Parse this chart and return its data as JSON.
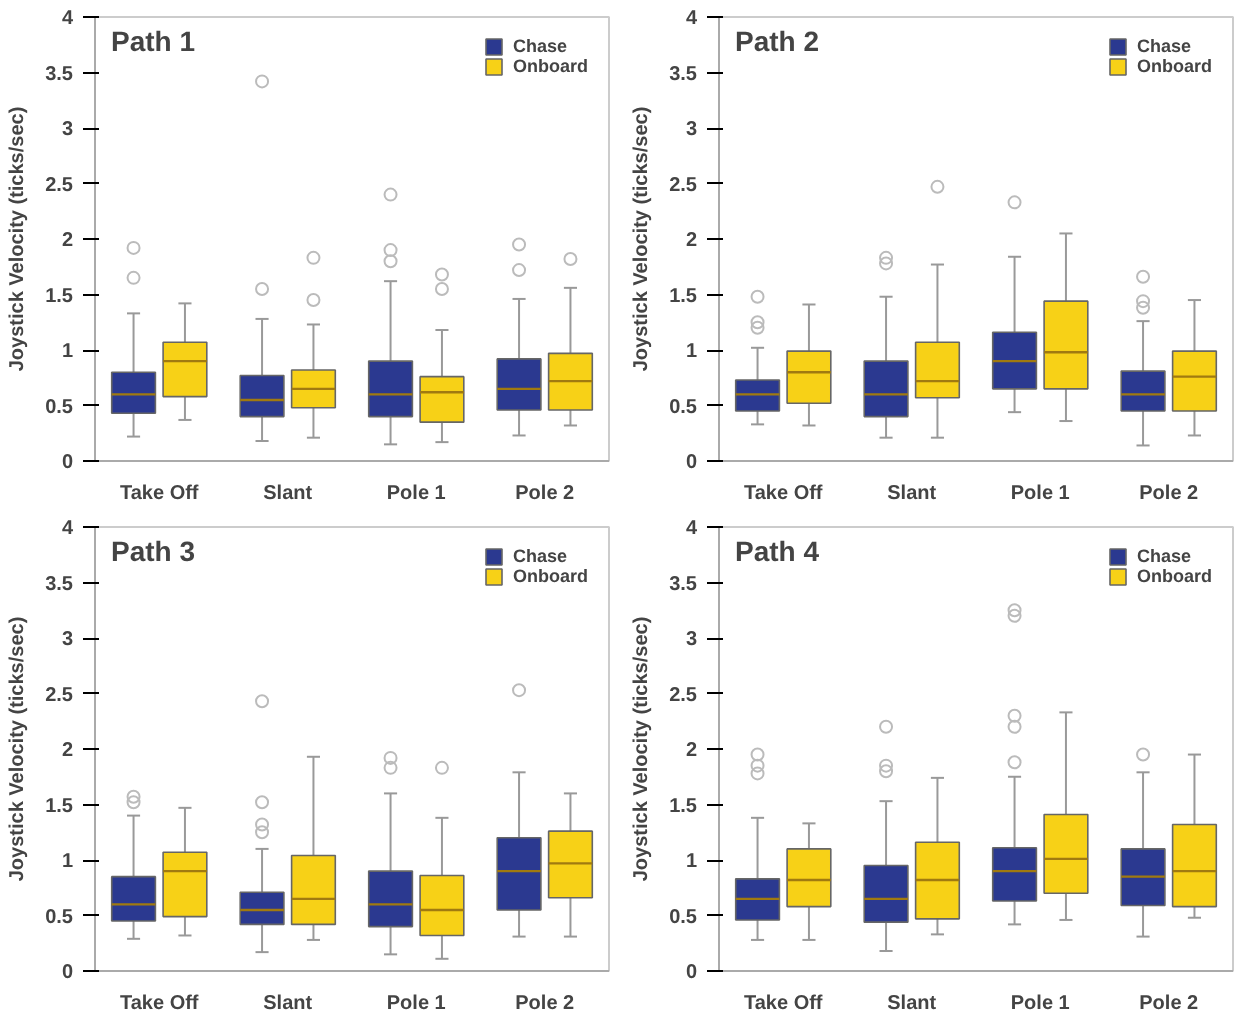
{
  "chart_data": [
    {
      "type": "box",
      "title": "Path 1",
      "ylabel": "Joystick Velocity (ticks/sec)",
      "categories": [
        "Take Off",
        "Slant",
        "Pole 1",
        "Pole 2"
      ],
      "ylim": [
        0,
        4
      ],
      "yticks": [
        0,
        0.5,
        1,
        1.5,
        2,
        2.5,
        3,
        3.5,
        4
      ],
      "legend": "top right",
      "grid": false,
      "series": [
        {
          "name": "Chase",
          "color": "#2b3990",
          "boxes": [
            {
              "low": 0.22,
              "q1": 0.43,
              "median": 0.6,
              "q3": 0.8,
              "high": 1.33,
              "outliers": [
                1.65,
                1.92
              ]
            },
            {
              "low": 0.18,
              "q1": 0.4,
              "median": 0.55,
              "q3": 0.77,
              "high": 1.28,
              "outliers": [
                1.55,
                3.42
              ]
            },
            {
              "low": 0.15,
              "q1": 0.4,
              "median": 0.6,
              "q3": 0.9,
              "high": 1.62,
              "outliers": [
                1.8,
                1.9,
                2.4
              ]
            },
            {
              "low": 0.23,
              "q1": 0.46,
              "median": 0.65,
              "q3": 0.92,
              "high": 1.46,
              "outliers": [
                1.72,
                1.95
              ]
            }
          ]
        },
        {
          "name": "Onboard",
          "color": "#f7d117",
          "boxes": [
            {
              "low": 0.37,
              "q1": 0.58,
              "median": 0.9,
              "q3": 1.07,
              "high": 1.42
            },
            {
              "low": 0.21,
              "q1": 0.48,
              "median": 0.65,
              "q3": 0.82,
              "high": 1.23,
              "outliers": [
                1.45,
                1.83
              ]
            },
            {
              "low": 0.17,
              "q1": 0.35,
              "median": 0.62,
              "q3": 0.76,
              "high": 1.18,
              "outliers": [
                1.55,
                1.68
              ]
            },
            {
              "low": 0.32,
              "q1": 0.46,
              "median": 0.72,
              "q3": 0.97,
              "high": 1.56,
              "outliers": [
                1.82
              ]
            }
          ]
        }
      ]
    },
    {
      "type": "box",
      "title": "Path 2",
      "ylabel": "Joystick Velocity (ticks/sec)",
      "categories": [
        "Take Off",
        "Slant",
        "Pole 1",
        "Pole 2"
      ],
      "ylim": [
        0,
        4
      ],
      "yticks": [
        0,
        0.5,
        1,
        1.5,
        2,
        2.5,
        3,
        3.5,
        4
      ],
      "legend": "top right",
      "grid": false,
      "series": [
        {
          "name": "Chase",
          "color": "#2b3990",
          "boxes": [
            {
              "low": 0.33,
              "q1": 0.45,
              "median": 0.6,
              "q3": 0.73,
              "high": 1.02,
              "outliers": [
                1.2,
                1.25,
                1.48
              ]
            },
            {
              "low": 0.21,
              "q1": 0.4,
              "median": 0.6,
              "q3": 0.9,
              "high": 1.48,
              "outliers": [
                1.78,
                1.83
              ]
            },
            {
              "low": 0.44,
              "q1": 0.65,
              "median": 0.9,
              "q3": 1.16,
              "high": 1.84,
              "outliers": [
                2.33
              ]
            },
            {
              "low": 0.14,
              "q1": 0.45,
              "median": 0.6,
              "q3": 0.81,
              "high": 1.26,
              "outliers": [
                1.38,
                1.44,
                1.66
              ]
            }
          ]
        },
        {
          "name": "Onboard",
          "color": "#f7d117",
          "boxes": [
            {
              "low": 0.32,
              "q1": 0.52,
              "median": 0.8,
              "q3": 0.99,
              "high": 1.41
            },
            {
              "low": 0.21,
              "q1": 0.57,
              "median": 0.72,
              "q3": 1.07,
              "high": 1.77,
              "outliers": [
                2.47
              ]
            },
            {
              "low": 0.36,
              "q1": 0.65,
              "median": 0.98,
              "q3": 1.44,
              "high": 2.05
            },
            {
              "low": 0.23,
              "q1": 0.45,
              "median": 0.76,
              "q3": 0.99,
              "high": 1.45
            }
          ]
        }
      ]
    },
    {
      "type": "box",
      "title": "Path 3",
      "ylabel": "Joystick Velocity (ticks/sec)",
      "categories": [
        "Take Off",
        "Slant",
        "Pole 1",
        "Pole 2"
      ],
      "ylim": [
        0,
        4
      ],
      "yticks": [
        0,
        0.5,
        1,
        1.5,
        2,
        2.5,
        3,
        3.5,
        4
      ],
      "legend": "top right",
      "grid": false,
      "series": [
        {
          "name": "Chase",
          "color": "#2b3990",
          "boxes": [
            {
              "low": 0.29,
              "q1": 0.45,
              "median": 0.6,
              "q3": 0.85,
              "high": 1.4,
              "outliers": [
                1.52,
                1.57
              ]
            },
            {
              "low": 0.17,
              "q1": 0.42,
              "median": 0.55,
              "q3": 0.71,
              "high": 1.1,
              "outliers": [
                1.25,
                1.32,
                1.52,
                2.43
              ]
            },
            {
              "low": 0.15,
              "q1": 0.4,
              "median": 0.6,
              "q3": 0.9,
              "high": 1.6,
              "outliers": [
                1.83,
                1.92
              ]
            },
            {
              "low": 0.31,
              "q1": 0.55,
              "median": 0.9,
              "q3": 1.2,
              "high": 1.79,
              "outliers": [
                2.53
              ]
            }
          ]
        },
        {
          "name": "Onboard",
          "color": "#f7d117",
          "boxes": [
            {
              "low": 0.32,
              "q1": 0.49,
              "median": 0.9,
              "q3": 1.07,
              "high": 1.47
            },
            {
              "low": 0.28,
              "q1": 0.42,
              "median": 0.65,
              "q3": 1.04,
              "high": 1.93
            },
            {
              "low": 0.11,
              "q1": 0.32,
              "median": 0.55,
              "q3": 0.86,
              "high": 1.38,
              "outliers": [
                1.83
              ]
            },
            {
              "low": 0.31,
              "q1": 0.66,
              "median": 0.97,
              "q3": 1.26,
              "high": 1.6
            }
          ]
        }
      ]
    },
    {
      "type": "box",
      "title": "Path 4",
      "ylabel": "Joystick Velocity (ticks/sec)",
      "categories": [
        "Take Off",
        "Slant",
        "Pole 1",
        "Pole 2"
      ],
      "ylim": [
        0,
        4
      ],
      "yticks": [
        0,
        0.5,
        1,
        1.5,
        2,
        2.5,
        3,
        3.5,
        4
      ],
      "legend": "top right",
      "grid": false,
      "series": [
        {
          "name": "Chase",
          "color": "#2b3990",
          "boxes": [
            {
              "low": 0.28,
              "q1": 0.46,
              "median": 0.65,
              "q3": 0.83,
              "high": 1.38,
              "outliers": [
                1.78,
                1.85,
                1.95
              ]
            },
            {
              "low": 0.18,
              "q1": 0.44,
              "median": 0.65,
              "q3": 0.95,
              "high": 1.53,
              "outliers": [
                1.8,
                1.85,
                2.2
              ]
            },
            {
              "low": 0.42,
              "q1": 0.63,
              "median": 0.9,
              "q3": 1.11,
              "high": 1.75,
              "outliers": [
                1.88,
                2.2,
                2.3,
                3.2,
                3.25
              ]
            },
            {
              "low": 0.31,
              "q1": 0.59,
              "median": 0.85,
              "q3": 1.1,
              "high": 1.79,
              "outliers": [
                1.95
              ]
            }
          ]
        },
        {
          "name": "Onboard",
          "color": "#f7d117",
          "boxes": [
            {
              "low": 0.28,
              "q1": 0.58,
              "median": 0.82,
              "q3": 1.1,
              "high": 1.33
            },
            {
              "low": 0.33,
              "q1": 0.47,
              "median": 0.82,
              "q3": 1.16,
              "high": 1.74
            },
            {
              "low": 0.46,
              "q1": 0.7,
              "median": 1.01,
              "q3": 1.41,
              "high": 2.33
            },
            {
              "low": 0.48,
              "q1": 0.58,
              "median": 0.9,
              "q3": 1.32,
              "high": 1.95
            }
          ]
        }
      ]
    }
  ]
}
